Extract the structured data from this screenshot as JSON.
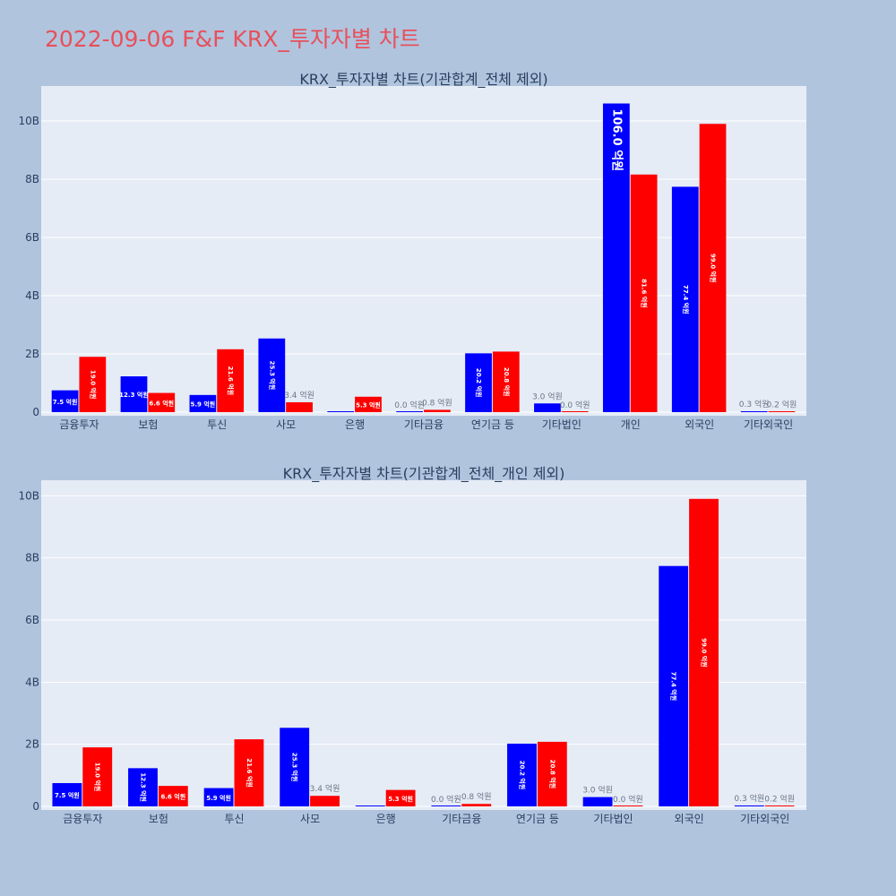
{
  "page": {
    "title": "2022-09-06 F&F KRX_투자자별 차트"
  },
  "colors": {
    "background": "#b0c4de",
    "plot_background": "#e5ecf6",
    "title": "#e8505b",
    "buy": "#0000ff",
    "sell": "#ff0000"
  },
  "chart_data": [
    {
      "type": "bar",
      "title": "KRX_투자자별 차트(기관합계_전체 제외)",
      "categories": [
        "금융투자",
        "보험",
        "투신",
        "사모",
        "은행",
        "기타금융",
        "연기금 등",
        "기타법인",
        "개인",
        "외국인",
        "기타외국인"
      ],
      "series": [
        {
          "color": "#0000ff",
          "values": [
            750000000,
            1230000000,
            590000000,
            2530000000,
            0,
            0,
            2020000000,
            300000000,
            10600000000,
            7740000000,
            30000000
          ],
          "labels": [
            "7.5 억원",
            "12.3 억원",
            "5.9 억원",
            "25.3 억원",
            "",
            "0.0 억원",
            "20.2 억원",
            "3.0 억원",
            "106.0 억원",
            "77.4 억원",
            "0.3 억원"
          ]
        },
        {
          "color": "#ff0000",
          "values": [
            1900000000,
            660000000,
            2160000000,
            340000000,
            530000000,
            80000000,
            2080000000,
            0,
            8160000000,
            9900000000,
            20000000
          ],
          "labels": [
            "19.0 억원",
            "6.6 억원",
            "21.6 억원",
            "3.4 억원",
            "5.3 억원",
            "0.8 억원",
            "20.8 억원",
            "0.0 억원",
            "81.6 억원",
            "99.0 억원",
            "0.2 억원"
          ]
        }
      ],
      "y_ticks": [
        "0",
        "2B",
        "4B",
        "6B",
        "8B",
        "10B"
      ],
      "y_tick_values": [
        0,
        2000000000,
        4000000000,
        6000000000,
        8000000000,
        10000000000
      ],
      "ylim": [
        0,
        11200000000
      ],
      "grid": true
    },
    {
      "type": "bar",
      "title": "KRX_투자자별 차트(기관합계_전체_개인 제외)",
      "categories": [
        "금융투자",
        "보험",
        "투신",
        "사모",
        "은행",
        "기타금융",
        "연기금 등",
        "기타법인",
        "외국인",
        "기타외국인"
      ],
      "series": [
        {
          "color": "#0000ff",
          "values": [
            750000000,
            1230000000,
            590000000,
            2530000000,
            0,
            0,
            2020000000,
            300000000,
            7740000000,
            30000000
          ],
          "labels": [
            "7.5 억원",
            "12.3 억원",
            "5.9 억원",
            "25.3 억원",
            "",
            "0.0 억원",
            "20.2 억원",
            "3.0 억원",
            "77.4 억원",
            "0.3 억원"
          ]
        },
        {
          "color": "#ff0000",
          "values": [
            1900000000,
            660000000,
            2160000000,
            340000000,
            530000000,
            80000000,
            2080000000,
            0,
            9900000000,
            20000000
          ],
          "labels": [
            "19.0 억원",
            "6.6 억원",
            "21.6 억원",
            "3.4 억원",
            "5.3 억원",
            "0.8 억원",
            "20.8 억원",
            "0.0 억원",
            "99.0 억원",
            "0.2 억원"
          ]
        }
      ],
      "y_ticks": [
        "0",
        "2B",
        "4B",
        "6B",
        "8B",
        "10B"
      ],
      "y_tick_values": [
        0,
        2000000000,
        4000000000,
        6000000000,
        8000000000,
        10000000000
      ],
      "ylim": [
        0,
        10500000000
      ],
      "grid": true
    }
  ]
}
